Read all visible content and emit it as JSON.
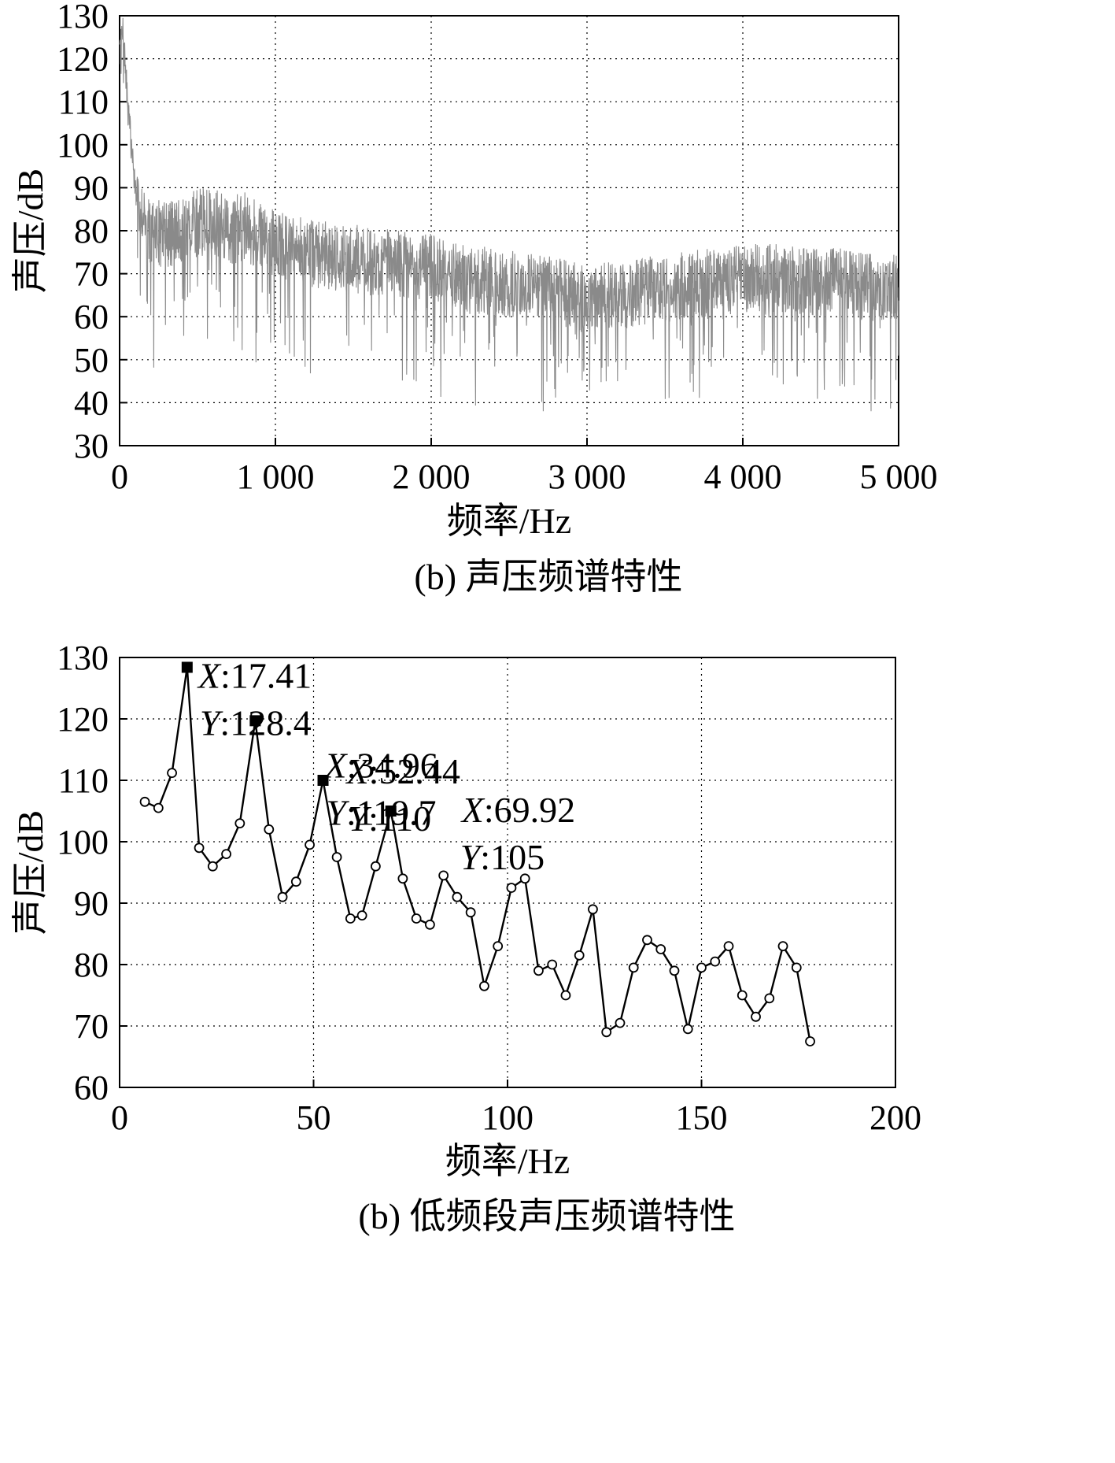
{
  "chart_data": [
    {
      "type": "line",
      "caption": "(b) 声压频谱特性",
      "xlabel": "频率/Hz",
      "ylabel": "声压/dB",
      "xlim": [
        0,
        5000
      ],
      "ylim": [
        30,
        130
      ],
      "x_ticks": [
        0,
        1000,
        2000,
        3000,
        4000,
        5000
      ],
      "x_tick_labels": [
        "0",
        "1 000",
        "2 000",
        "3 000",
        "4 000",
        "5 000"
      ],
      "y_ticks": [
        30,
        40,
        50,
        60,
        70,
        80,
        90,
        100,
        110,
        120,
        130
      ],
      "y_tick_labels": [
        "30",
        "40",
        "50",
        "60",
        "70",
        "80",
        "90",
        "100",
        "110",
        "120",
        "130"
      ],
      "grid": true,
      "line_color": "#8a8a8a",
      "series": [
        {
          "x": [
            0,
            20,
            50,
            100,
            200,
            300,
            400,
            500,
            600,
            700,
            800,
            900,
            1000,
            1200,
            1400,
            1600,
            1800,
            2000,
            2200,
            2400,
            2600,
            2800,
            3000,
            3200,
            3400,
            3600,
            3800,
            4000,
            4200,
            4400,
            4600,
            4800,
            5000
          ],
          "values": [
            120,
            128,
            110,
            90,
            80,
            79,
            80,
            82,
            82,
            80,
            81,
            79,
            77,
            75,
            74,
            73,
            72,
            72,
            69,
            68,
            67,
            66,
            64,
            65,
            66,
            67,
            68,
            69,
            69,
            68,
            68,
            67,
            67
          ]
        }
      ]
    },
    {
      "type": "line",
      "caption": "(b) 低频段声压频谱特性",
      "xlabel": "频率/Hz",
      "ylabel": "声压/dB",
      "xlim": [
        0,
        200
      ],
      "ylim": [
        60,
        130
      ],
      "x_ticks": [
        0,
        50,
        100,
        150,
        200
      ],
      "x_tick_labels": [
        "0",
        "50",
        "100",
        "150",
        "200"
      ],
      "y_ticks": [
        60,
        70,
        80,
        90,
        100,
        110,
        120,
        130
      ],
      "y_tick_labels": [
        "60",
        "70",
        "80",
        "90",
        "100",
        "110",
        "120",
        "130"
      ],
      "grid": true,
      "line_color": "#000000",
      "series": [
        {
          "x": [
            6.5,
            10.0,
            13.5,
            17.41,
            20.5,
            24.0,
            27.5,
            31.0,
            34.96,
            38.5,
            42.0,
            45.5,
            49.0,
            52.44,
            56.0,
            59.5,
            62.5,
            66.0,
            69.92,
            73.0,
            76.5,
            80.0,
            83.5,
            87.0,
            90.5,
            94.0,
            97.5,
            101.0,
            104.5,
            108.0,
            111.5,
            115.0,
            118.5,
            122.0,
            125.5,
            129.0,
            132.5,
            136.0,
            139.5,
            143.0,
            146.5,
            150.0,
            153.5,
            157.0,
            160.5,
            164.0,
            167.5,
            171.0,
            174.5,
            178.0
          ],
          "values": [
            106.5,
            105.5,
            111.2,
            128.4,
            99.0,
            96.0,
            98.0,
            103.0,
            119.7,
            102.0,
            91.0,
            93.5,
            99.5,
            110.0,
            97.5,
            87.5,
            88.0,
            96.0,
            105.0,
            94.0,
            87.5,
            86.5,
            94.5,
            91.0,
            88.5,
            76.5,
            83.0,
            92.5,
            94.0,
            79.0,
            80.0,
            75.0,
            81.5,
            89.0,
            69.0,
            70.5,
            79.5,
            84.0,
            82.5,
            79.0,
            69.5,
            79.5,
            80.5,
            83.0,
            75.0,
            71.5,
            74.5,
            83.0,
            79.5,
            67.5
          ]
        }
      ],
      "markers": [
        {
          "x": 17.41,
          "y": 128.4,
          "x_label": "X",
          "x_value": ":17.41",
          "y_label": "Y",
          "y_value": ":128.4"
        },
        {
          "x": 34.96,
          "y": 119.7,
          "x_label": "X",
          "x_value": ":34.96",
          "y_label": "Y",
          "y_value": ":119.7"
        },
        {
          "x": 52.44,
          "y": 110,
          "x_label": "X",
          "x_value": ":52.44",
          "y_label": "Y",
          "y_value": ":110"
        },
        {
          "x": 69.92,
          "y": 105,
          "x_label": "X",
          "x_value": ":69.92",
          "y_label": "Y",
          "y_value": ":105"
        }
      ]
    }
  ]
}
